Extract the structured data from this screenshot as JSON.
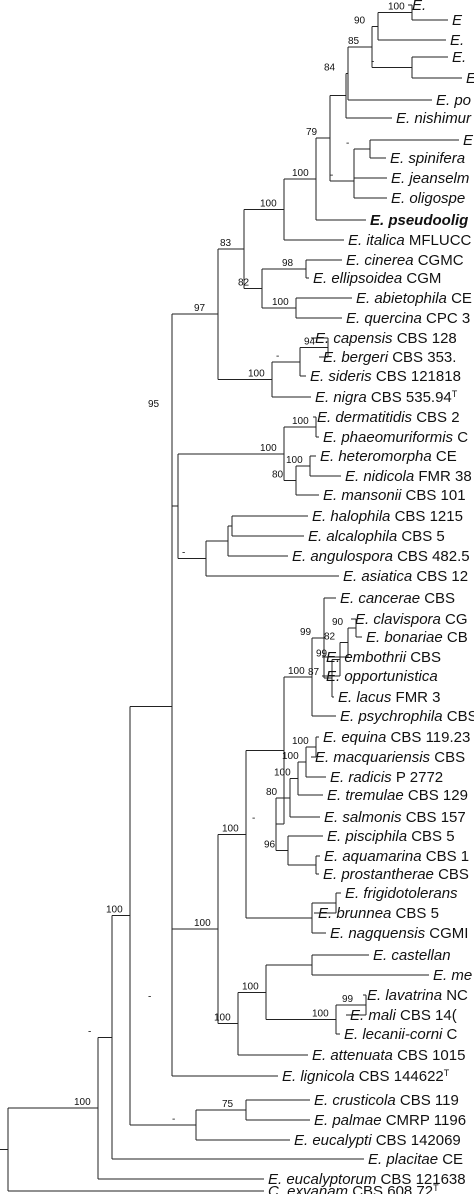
{
  "tree": {
    "taxa": [
      {
        "genus": "E.",
        "name": "",
        "rest": ""
      },
      {
        "genus": "E",
        "name": "",
        "rest": ""
      },
      {
        "genus": "E.",
        "name": "",
        "rest": ""
      },
      {
        "genus": "E.",
        "name": "",
        "rest": ""
      },
      {
        "genus": "E.",
        "name": "",
        "rest": ""
      },
      {
        "genus": "E.",
        "name": "po",
        "rest": ""
      },
      {
        "genus": "E.",
        "name": "nishimur",
        "rest": ""
      },
      {
        "genus": "E",
        "name": "",
        "rest": ""
      },
      {
        "genus": "E.",
        "name": "spinifera",
        "rest": ""
      },
      {
        "genus": "E.",
        "name": "jeanselm",
        "rest": ""
      },
      {
        "genus": "E.",
        "name": "oligospe",
        "rest": ""
      },
      {
        "genus": "E.",
        "name": "pseudoolig",
        "rest": "",
        "bold": true
      },
      {
        "genus": "E.",
        "name": "italica",
        "rest": "MFLUCC"
      },
      {
        "genus": "E.",
        "name": "cinerea",
        "rest": "CGMC"
      },
      {
        "genus": "E.",
        "name": "ellipsoidea",
        "rest": "CGM"
      },
      {
        "genus": "E.",
        "name": "abietophila",
        "rest": "CE"
      },
      {
        "genus": "E.",
        "name": "quercina",
        "rest": "CPC 3"
      },
      {
        "genus": "E.",
        "name": "capensis",
        "rest": "CBS 128"
      },
      {
        "genus": "E.",
        "name": "bergeri",
        "rest": "CBS 353."
      },
      {
        "genus": "E.",
        "name": "sideris",
        "rest": "CBS 121818"
      },
      {
        "genus": "E.",
        "name": "nigra",
        "rest": "CBS 535.94",
        "sup": "T"
      },
      {
        "genus": "E.",
        "name": "dermatitidis",
        "rest": "CBS 2"
      },
      {
        "genus": "E.",
        "name": "phaeomuriformis",
        "rest": "C"
      },
      {
        "genus": "E.",
        "name": "heteromorpha",
        "rest": "CE"
      },
      {
        "genus": "E.",
        "name": "nidicola",
        "rest": "FMR 38"
      },
      {
        "genus": "E.",
        "name": "mansonii",
        "rest": "CBS 101"
      },
      {
        "genus": "E.",
        "name": "halophila",
        "rest": "CBS 1215"
      },
      {
        "genus": "E.",
        "name": "alcalophila",
        "rest": "CBS 5"
      },
      {
        "genus": "E.",
        "name": "angulospora",
        "rest": "CBS 482.5"
      },
      {
        "genus": "E.",
        "name": "asiatica",
        "rest": "CBS 12"
      },
      {
        "genus": "E.",
        "name": "cancerae",
        "rest": "CBS"
      },
      {
        "genus": "E.",
        "name": "clavispora",
        "rest": "CG"
      },
      {
        "genus": "E.",
        "name": "bonariae",
        "rest": "CB"
      },
      {
        "genus": "E.",
        "name": "embothrii",
        "rest": "CBS"
      },
      {
        "genus": "E.",
        "name": "opportunistica",
        "rest": ""
      },
      {
        "genus": "E.",
        "name": "lacus",
        "rest": "FMR 3"
      },
      {
        "genus": "E.",
        "name": "psychrophila",
        "rest": "CBS"
      },
      {
        "genus": "E.",
        "name": "equina",
        "rest": "CBS 119.23"
      },
      {
        "genus": "E.",
        "name": "macquariensis",
        "rest": "CBS"
      },
      {
        "genus": "E.",
        "name": "radicis",
        "rest": "P 2772"
      },
      {
        "genus": "E.",
        "name": "tremulae",
        "rest": "CBS 129"
      },
      {
        "genus": "E.",
        "name": "salmonis",
        "rest": "CBS 157"
      },
      {
        "genus": "E.",
        "name": "pisciphila",
        "rest": "CBS 5"
      },
      {
        "genus": "E.",
        "name": "aquamarina",
        "rest": "CBS 1"
      },
      {
        "genus": "E.",
        "name": "prostantherae",
        "rest": "CBS"
      },
      {
        "genus": "E.",
        "name": "frigidotolerans",
        "rest": ""
      },
      {
        "genus": "E.",
        "name": "brunnea",
        "rest": "CBS 5"
      },
      {
        "genus": "E.",
        "name": "nagquensis",
        "rest": "CGMI"
      },
      {
        "genus": "E.",
        "name": "castellan",
        "rest": ""
      },
      {
        "genus": "E.",
        "name": "me",
        "rest": ""
      },
      {
        "genus": "E.",
        "name": "lavatrina",
        "rest": "NC"
      },
      {
        "genus": "E.",
        "name": "mali",
        "rest": "CBS 14("
      },
      {
        "genus": "E.",
        "name": "lecanii-corni",
        "rest": "C"
      },
      {
        "genus": "E.",
        "name": "attenuata",
        "rest": "CBS 1015"
      },
      {
        "genus": "E.",
        "name": "lignicola",
        "rest": "CBS 144622",
        "sup": "T"
      },
      {
        "genus": "E.",
        "name": "crusticola",
        "rest": "CBS 119"
      },
      {
        "genus": "E.",
        "name": "palmae",
        "rest": "CMRP 1196"
      },
      {
        "genus": "E.",
        "name": "eucalypti",
        "rest": "CBS 142069"
      },
      {
        "genus": "E.",
        "name": "placitae",
        "rest": "CE"
      },
      {
        "genus": "E.",
        "name": "eucalyptorum",
        "rest": "CBS 121638"
      },
      {
        "genus": "C.",
        "name": "exyanam",
        "rest": "CBS 608.72",
        "sup": "T"
      }
    ],
    "supports": [
      "100",
      "90",
      "-",
      "100",
      "85",
      "84",
      "79",
      "-",
      "-",
      "100",
      "100",
      "83",
      "98",
      "82",
      "100",
      "97",
      "94",
      "-",
      "100",
      "100",
      "100",
      "80",
      "100",
      "-",
      "95",
      "90",
      "82",
      "99",
      "99",
      "87",
      "100",
      "-",
      "100",
      "100",
      "100",
      "80",
      "96",
      "100",
      "100",
      "100",
      "99",
      "100",
      "100",
      "-",
      "75",
      "-",
      "-",
      "100"
    ]
  }
}
